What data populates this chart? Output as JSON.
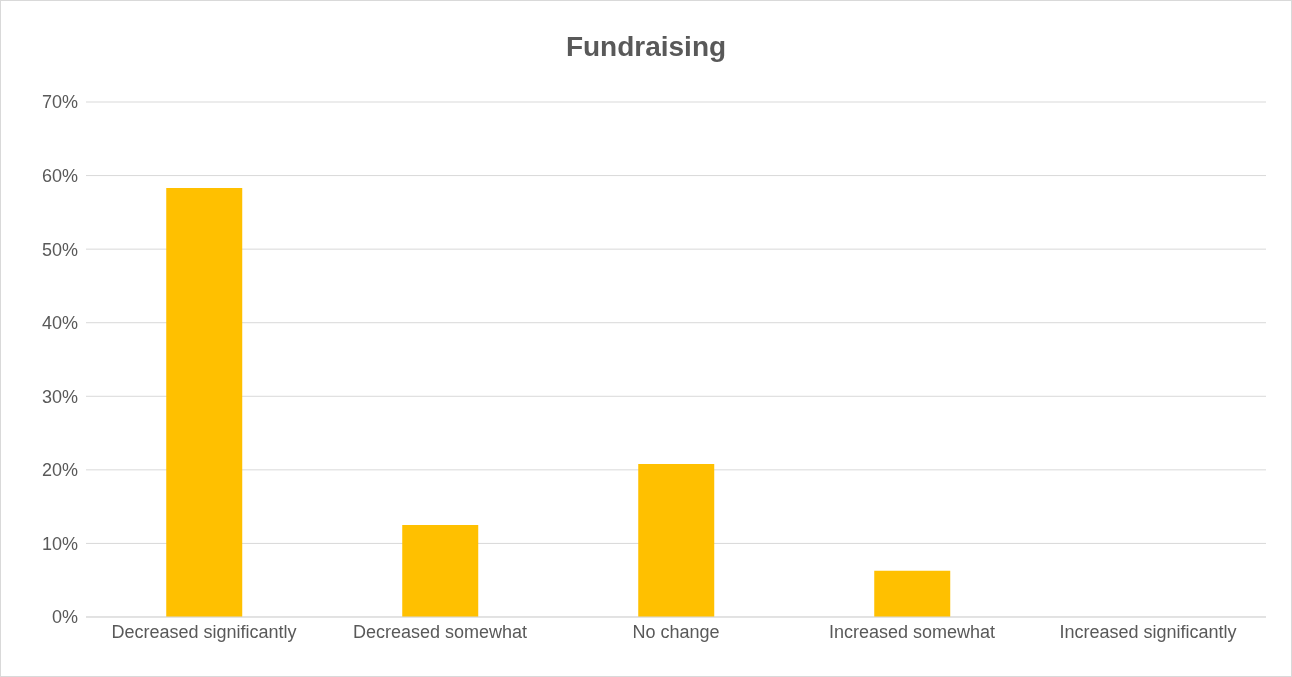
{
  "chart_data": {
    "type": "bar",
    "title": "Fundraising",
    "categories": [
      "Decreased significantly",
      "Decreased somewhat",
      "No change",
      "Increased somewhat",
      "Increased significantly"
    ],
    "values": [
      58.3,
      12.5,
      20.8,
      6.3,
      0
    ],
    "color": "#ffc000",
    "ylim": [
      0,
      70
    ],
    "yticks": [
      {
        "value": 0,
        "label": "0%"
      },
      {
        "value": 10,
        "label": "10%"
      },
      {
        "value": 20,
        "label": "20%"
      },
      {
        "value": 30,
        "label": "30%"
      },
      {
        "value": 40,
        "label": "40%"
      },
      {
        "value": 50,
        "label": "50%"
      },
      {
        "value": 60,
        "label": "60%"
      },
      {
        "value": 70,
        "label": "70%"
      }
    ],
    "grid": "y"
  }
}
